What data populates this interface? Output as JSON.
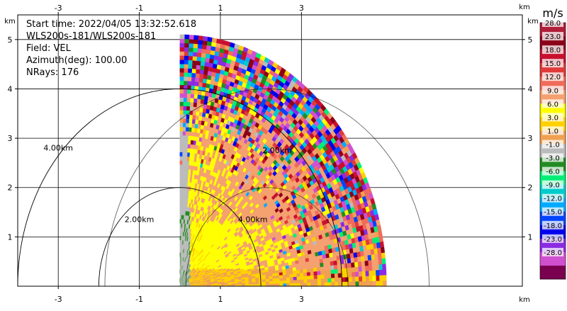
{
  "info": {
    "start_time": "Start time: 2022/04/05 13:32:52.618",
    "instrument": "WLS200s-181/WLS200s-181",
    "field": "Field: VEL",
    "azimuth": "Azimuth(deg): 100.00",
    "nrays": "NRays: 176"
  },
  "chart_data": {
    "type": "heatmap",
    "projection": "polar-sector (range-height indicator)",
    "xlim": [
      -4.0,
      8.45
    ],
    "ylim": [
      0.0,
      5.5
    ],
    "x_ticks": [
      -3,
      -1,
      1,
      3
    ],
    "y_ticks": [
      1,
      2,
      3,
      4,
      5
    ],
    "x_unit": "km",
    "y_unit": "km",
    "grid": true,
    "sector": {
      "origin_km": [
        0.0,
        0.0
      ],
      "max_range_km": 5.1,
      "elevation_deg": [
        0,
        90
      ]
    },
    "range_rings": [
      {
        "radius_km": 2.0,
        "label": "2.00km"
      },
      {
        "radius_km": 4.0,
        "label": "4.00km"
      },
      {
        "label": "2.00km"
      },
      {
        "label": "4.00km"
      }
    ],
    "colorbar": {
      "unit": "m/s",
      "tick_labels": [
        "28.0",
        "23.0",
        "18.0",
        "15.0",
        "12.0",
        "9.0",
        "6.0",
        "3.0",
        "1.0",
        "-1.0",
        "-3.0",
        "-6.0",
        "-9.0",
        "-12.0",
        "-15.0",
        "-18.0",
        "-23.0",
        "-28.0"
      ],
      "colors": [
        "#b01e3a",
        "#8b0018",
        "#c8102e",
        "#e03a3a",
        "#f06b5a",
        "#f5a06f",
        "#ffff00",
        "#ffd000",
        "#f0a050",
        "#bbbbbb",
        "#228b22",
        "#00ee77",
        "#00cccc",
        "#00aaff",
        "#0044ff",
        "#0000ee",
        "#8a2be2",
        "#d050d0",
        "#7a0050"
      ]
    }
  }
}
